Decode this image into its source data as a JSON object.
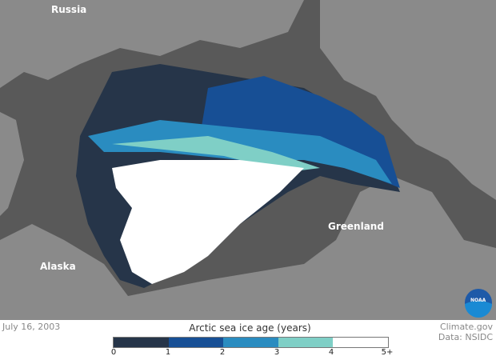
{
  "map": {
    "labels": {
      "russia": "Russia",
      "alaska": "Alaska",
      "greenland": "Greenland"
    },
    "colors": {
      "ocean": "#595959",
      "land": "#8a8a8a"
    }
  },
  "date": "July 16, 2003",
  "legend": {
    "title": "Arctic sea ice age (years)",
    "colors": [
      "#263549",
      "#174f95",
      "#2a8cc0",
      "#7fcfc6",
      "#ffffff"
    ],
    "ticks": [
      "0",
      "1",
      "2",
      "3",
      "4",
      "5+"
    ]
  },
  "credit": {
    "source": "Climate.gov",
    "data": "Data: NSIDC"
  },
  "logo": {
    "text": "NOAA"
  }
}
